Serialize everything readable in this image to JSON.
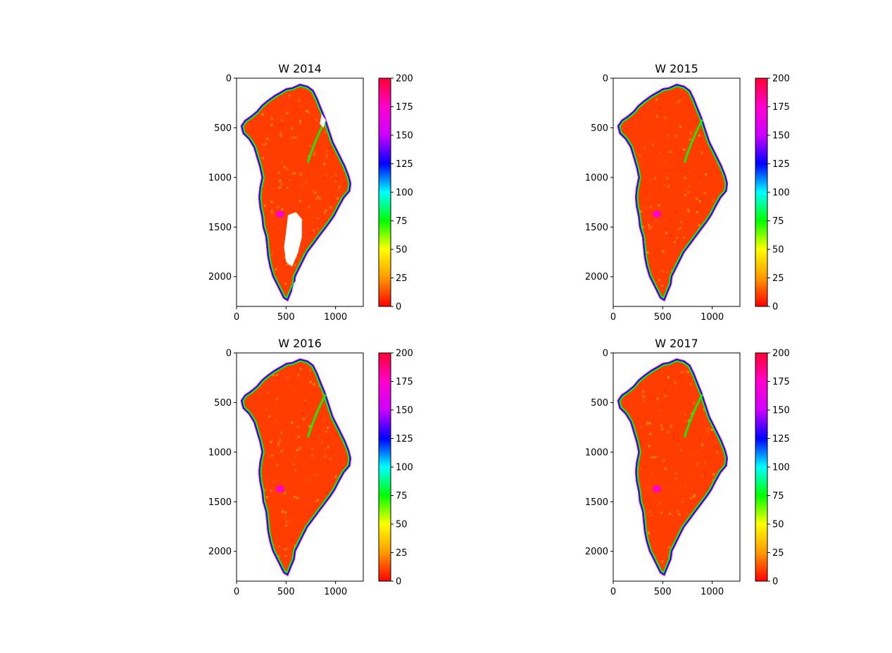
{
  "figure": {
    "colormap": "gist_rainbow_r",
    "colormap_stops": [
      "#ff0000",
      "#ff9900",
      "#ffff00",
      "#00ff00",
      "#00ffff",
      "#0000ff",
      "#cc00ff",
      "#ff00cc",
      "#ff0033"
    ],
    "land_mask_color": "#ffffff"
  },
  "chart_data": [
    {
      "type": "heatmap",
      "title": "W 2014",
      "xlabel": "",
      "ylabel": "",
      "xlim": [
        0,
        1280
      ],
      "ylim": [
        2300,
        0
      ],
      "x_ticks": [
        0,
        500,
        1000
      ],
      "y_ticks": [
        0,
        500,
        1000,
        1500,
        2000
      ],
      "colorbar": {
        "range": [
          0,
          200
        ],
        "ticks": [
          0,
          25,
          50,
          75,
          100,
          125,
          150,
          175,
          200
        ]
      },
      "coverage": "partial",
      "dominant_value": 10,
      "margin_values": [
        75,
        125,
        175
      ]
    },
    {
      "type": "heatmap",
      "title": "W 2015",
      "xlabel": "",
      "ylabel": "",
      "xlim": [
        0,
        1280
      ],
      "ylim": [
        2300,
        0
      ],
      "x_ticks": [
        0,
        500,
        1000
      ],
      "y_ticks": [
        0,
        500,
        1000,
        1500,
        2000
      ],
      "colorbar": {
        "range": [
          0,
          200
        ],
        "ticks": [
          0,
          25,
          50,
          75,
          100,
          125,
          150,
          175,
          200
        ]
      },
      "coverage": "full",
      "dominant_value": 10,
      "margin_values": [
        75,
        125,
        175
      ]
    },
    {
      "type": "heatmap",
      "title": "W 2016",
      "xlabel": "",
      "ylabel": "",
      "xlim": [
        0,
        1280
      ],
      "ylim": [
        2300,
        0
      ],
      "x_ticks": [
        0,
        500,
        1000
      ],
      "y_ticks": [
        0,
        500,
        1000,
        1500,
        2000
      ],
      "colorbar": {
        "range": [
          0,
          200
        ],
        "ticks": [
          0,
          25,
          50,
          75,
          100,
          125,
          150,
          175,
          200
        ]
      },
      "coverage": "full",
      "dominant_value": 10,
      "margin_values": [
        75,
        125,
        175
      ]
    },
    {
      "type": "heatmap",
      "title": "W 2017",
      "xlabel": "",
      "ylabel": "",
      "xlim": [
        0,
        1280
      ],
      "ylim": [
        2300,
        0
      ],
      "x_ticks": [
        0,
        500,
        1000
      ],
      "y_ticks": [
        0,
        500,
        1000,
        1500,
        2000
      ],
      "colorbar": {
        "range": [
          0,
          200
        ],
        "ticks": [
          0,
          25,
          50,
          75,
          100,
          125,
          150,
          175,
          200
        ]
      },
      "coverage": "full",
      "dominant_value": 10,
      "margin_values": [
        75,
        125,
        175
      ]
    }
  ]
}
